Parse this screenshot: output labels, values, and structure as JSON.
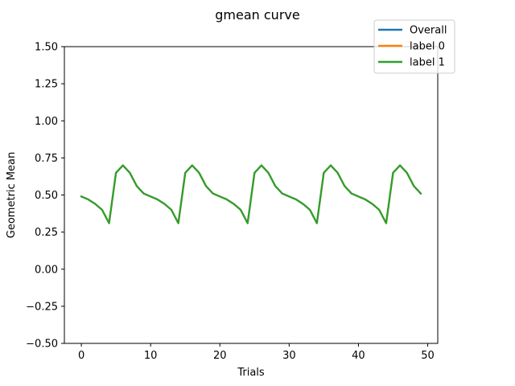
{
  "chart_data": {
    "type": "line",
    "title": "gmean curve",
    "xlabel": "Trials",
    "ylabel": "Geometric Mean",
    "xlim": [
      -2.45,
      51.45
    ],
    "ylim": [
      -0.5,
      1.5
    ],
    "xticks": [
      0,
      10,
      20,
      30,
      40,
      50
    ],
    "yticks": [
      -0.5,
      -0.25,
      0.0,
      0.25,
      0.5,
      0.75,
      1.0,
      1.25,
      1.5
    ],
    "xtick_labels": [
      "0",
      "10",
      "20",
      "30",
      "40",
      "50"
    ],
    "ytick_labels": [
      "−0.50",
      "−0.25",
      "0.00",
      "0.25",
      "0.50",
      "0.75",
      "1.00",
      "1.25",
      "1.50"
    ],
    "legend_position": "top-right",
    "grid": false,
    "x": [
      0,
      1,
      2,
      3,
      4,
      5,
      6,
      7,
      8,
      9,
      10,
      11,
      12,
      13,
      14,
      15,
      16,
      17,
      18,
      19,
      20,
      21,
      22,
      23,
      24,
      25,
      26,
      27,
      28,
      29,
      30,
      31,
      32,
      33,
      34,
      35,
      36,
      37,
      38,
      39,
      40,
      41,
      42,
      43,
      44,
      45,
      46,
      47,
      48,
      49
    ],
    "series": [
      {
        "name": "Overall",
        "color": "#1f77b4",
        "values": [
          0.49,
          0.47,
          0.44,
          0.4,
          0.31,
          0.65,
          0.7,
          0.65,
          0.56,
          0.51,
          0.49,
          0.47,
          0.44,
          0.4,
          0.31,
          0.65,
          0.7,
          0.65,
          0.56,
          0.51,
          0.49,
          0.47,
          0.44,
          0.4,
          0.31,
          0.65,
          0.7,
          0.65,
          0.56,
          0.51,
          0.49,
          0.47,
          0.44,
          0.4,
          0.31,
          0.65,
          0.7,
          0.65,
          0.56,
          0.51,
          0.49,
          0.47,
          0.44,
          0.4,
          0.31,
          0.65,
          0.7,
          0.65,
          0.56,
          0.51
        ]
      },
      {
        "name": "label 0",
        "color": "#ff7f0e",
        "values": [
          0.49,
          0.47,
          0.44,
          0.4,
          0.31,
          0.65,
          0.7,
          0.65,
          0.56,
          0.51,
          0.49,
          0.47,
          0.44,
          0.4,
          0.31,
          0.65,
          0.7,
          0.65,
          0.56,
          0.51,
          0.49,
          0.47,
          0.44,
          0.4,
          0.31,
          0.65,
          0.7,
          0.65,
          0.56,
          0.51,
          0.49,
          0.47,
          0.44,
          0.4,
          0.31,
          0.65,
          0.7,
          0.65,
          0.56,
          0.51,
          0.49,
          0.47,
          0.44,
          0.4,
          0.31,
          0.65,
          0.7,
          0.65,
          0.56,
          0.51
        ]
      },
      {
        "name": "label 1",
        "color": "#2ca02c",
        "values": [
          0.49,
          0.47,
          0.44,
          0.4,
          0.31,
          0.65,
          0.7,
          0.65,
          0.56,
          0.51,
          0.49,
          0.47,
          0.44,
          0.4,
          0.31,
          0.65,
          0.7,
          0.65,
          0.56,
          0.51,
          0.49,
          0.47,
          0.44,
          0.4,
          0.31,
          0.65,
          0.7,
          0.65,
          0.56,
          0.51,
          0.49,
          0.47,
          0.44,
          0.4,
          0.31,
          0.65,
          0.7,
          0.65,
          0.56,
          0.51,
          0.49,
          0.47,
          0.44,
          0.4,
          0.31,
          0.65,
          0.7,
          0.65,
          0.56,
          0.51
        ]
      }
    ]
  }
}
